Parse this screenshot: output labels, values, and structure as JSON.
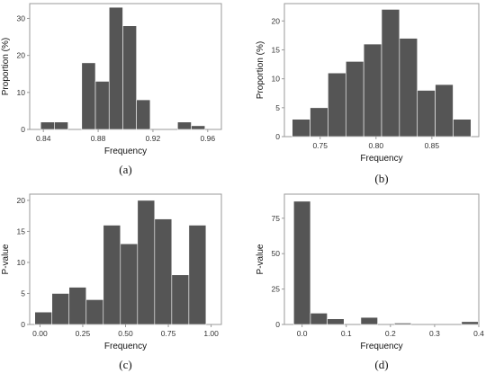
{
  "chart_data": [
    {
      "type": "bar",
      "panel_label": "(a)",
      "xlabel": "Frequency",
      "ylabel": "Proportion (%)",
      "xlim": [
        0.83,
        0.97
      ],
      "ylim": [
        0,
        34
      ],
      "xticks": [
        0.84,
        0.88,
        0.92,
        0.96
      ],
      "xtick_labels": [
        "0.84",
        "0.88",
        "0.92",
        "0.96"
      ],
      "yticks": [
        0,
        10,
        20,
        30
      ],
      "bins": [
        [
          0.838,
          0.848
        ],
        [
          0.848,
          0.858
        ],
        [
          0.868,
          0.878
        ],
        [
          0.878,
          0.888
        ],
        [
          0.888,
          0.898
        ],
        [
          0.898,
          0.908
        ],
        [
          0.908,
          0.918
        ],
        [
          0.938,
          0.948
        ],
        [
          0.948,
          0.958
        ]
      ],
      "values": [
        2,
        2,
        18,
        13,
        33,
        28,
        8,
        2,
        1
      ],
      "grid": false
    },
    {
      "type": "bar",
      "panel_label": "(b)",
      "xlabel": "Frequency",
      "ylabel": "Proportion (%)",
      "xlim": [
        0.718,
        0.892
      ],
      "ylim": [
        0,
        23
      ],
      "xticks": [
        0.75,
        0.8,
        0.85
      ],
      "xtick_labels": [
        "0.75",
        "0.80",
        "0.85"
      ],
      "yticks": [
        0,
        5,
        10,
        15,
        20
      ],
      "bins": [
        [
          0.725,
          0.741
        ],
        [
          0.741,
          0.757
        ],
        [
          0.757,
          0.773
        ],
        [
          0.773,
          0.789
        ],
        [
          0.789,
          0.805
        ],
        [
          0.805,
          0.821
        ],
        [
          0.821,
          0.837
        ],
        [
          0.837,
          0.853
        ],
        [
          0.853,
          0.869
        ],
        [
          0.869,
          0.885
        ]
      ],
      "values": [
        3,
        5,
        11,
        13,
        16,
        22,
        17,
        8,
        9,
        3
      ],
      "grid": false
    },
    {
      "type": "bar",
      "panel_label": "(c)",
      "xlabel": "Frequency",
      "ylabel": "P-value",
      "xlim": [
        -0.06,
        1.06
      ],
      "ylim": [
        0,
        21
      ],
      "xticks": [
        0.0,
        0.25,
        0.5,
        0.75,
        1.0
      ],
      "xtick_labels": [
        "0.00",
        "0.25",
        "0.50",
        "0.75",
        "1.00"
      ],
      "yticks": [
        0,
        5,
        10,
        15,
        20
      ],
      "bins": [
        [
          -0.03,
          0.07
        ],
        [
          0.07,
          0.17
        ],
        [
          0.17,
          0.27
        ],
        [
          0.27,
          0.37
        ],
        [
          0.37,
          0.47
        ],
        [
          0.47,
          0.57
        ],
        [
          0.57,
          0.67
        ],
        [
          0.67,
          0.77
        ],
        [
          0.77,
          0.87
        ],
        [
          0.87,
          0.97
        ]
      ],
      "values": [
        2,
        5,
        6,
        4,
        16,
        13,
        20,
        17,
        8,
        16
      ],
      "grid": false
    },
    {
      "type": "bar",
      "panel_label": "(d)",
      "xlabel": "Frequency",
      "ylabel": "P-value",
      "xlim": [
        -0.04,
        0.4
      ],
      "ylim": [
        0,
        92
      ],
      "xticks": [
        0.0,
        0.1,
        0.2,
        0.3,
        0.4
      ],
      "xtick_labels": [
        "0.0",
        "0.1",
        "0.2",
        "0.3",
        "0.4"
      ],
      "yticks": [
        0,
        25,
        50,
        75
      ],
      "bins": [
        [
          -0.019,
          0.019
        ],
        [
          0.019,
          0.057
        ],
        [
          0.057,
          0.095
        ],
        [
          0.095,
          0.133
        ],
        [
          0.133,
          0.171
        ],
        [
          0.171,
          0.209
        ],
        [
          0.209,
          0.247
        ],
        [
          0.247,
          0.285
        ],
        [
          0.285,
          0.323
        ],
        [
          0.323,
          0.361
        ],
        [
          0.361,
          0.399
        ]
      ],
      "values": [
        87,
        8,
        4,
        0,
        5,
        0,
        1,
        0,
        0,
        0,
        2
      ],
      "grid": false
    }
  ],
  "colors": {
    "bar_fill": "#555555",
    "bar_edge": "#ffffff",
    "axis": "#9a9a9a"
  }
}
